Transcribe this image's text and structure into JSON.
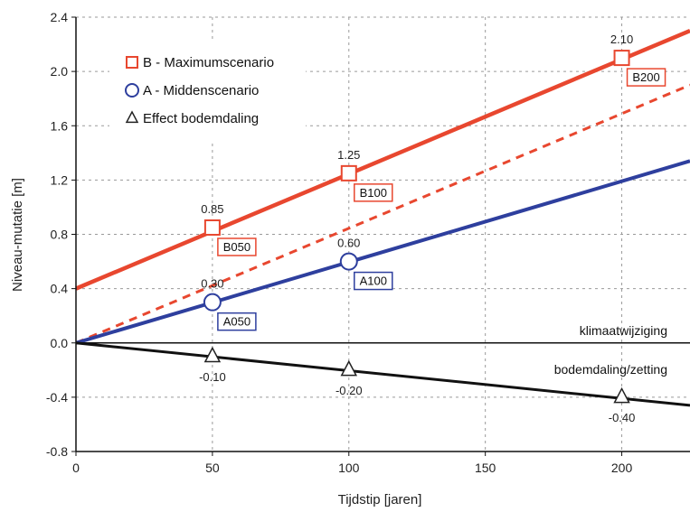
{
  "chart_data": {
    "type": "line",
    "xlabel": "Tijdstip [jaren]",
    "ylabel": "Niveau-mutatie [m]",
    "xlim": [
      0,
      225
    ],
    "ylim": [
      -0.8,
      2.4
    ],
    "xticks": [
      0,
      50,
      100,
      150,
      200
    ],
    "yticks": [
      -0.8,
      -0.4,
      0.0,
      0.4,
      0.8,
      1.2,
      1.6,
      2.0,
      2.4
    ],
    "xtick_labels": [
      "0",
      "50",
      "100",
      "150",
      "200"
    ],
    "ytick_labels": [
      "-0.8",
      "-0.4",
      "0.0",
      "0.4",
      "0.8",
      "1.2",
      "1.6",
      "2.0",
      "2.4"
    ],
    "grid": true,
    "legend_position": "top-left",
    "series": [
      {
        "name": "B - Maximumscenario",
        "legend_symbol": "□",
        "color": "#e8472f",
        "marker": "square",
        "line": {
          "x": [
            0,
            225
          ],
          "y": [
            0.4,
            2.3
          ]
        },
        "points": [
          {
            "x": 50,
            "y": 0.85,
            "label": "0.85",
            "tag": "B050"
          },
          {
            "x": 100,
            "y": 1.25,
            "label": "1.25",
            "tag": "B100"
          },
          {
            "x": 200,
            "y": 2.1,
            "label": "2.10",
            "tag": "B200"
          }
        ]
      },
      {
        "name": "A - Middenscenario",
        "legend_symbol": "○",
        "color": "#2e3f9e",
        "marker": "circle",
        "line": {
          "x": [
            0,
            225
          ],
          "y": [
            0.0,
            1.34
          ]
        },
        "points": [
          {
            "x": 50,
            "y": 0.3,
            "label": "0.30",
            "tag": "A050"
          },
          {
            "x": 100,
            "y": 0.6,
            "label": "0.60",
            "tag": "A100"
          }
        ]
      },
      {
        "name": "Effect bodemdaling",
        "legend_symbol": "Δ",
        "color": "#111111",
        "marker": "triangle",
        "line": {
          "x": [
            0,
            225
          ],
          "y": [
            0.0,
            -0.46
          ]
        },
        "points": [
          {
            "x": 50,
            "y": -0.1,
            "label": "-0.10"
          },
          {
            "x": 100,
            "y": -0.2,
            "label": "-0.20"
          },
          {
            "x": 200,
            "y": -0.4,
            "label": "-0.40"
          }
        ]
      }
    ],
    "dashed_line": {
      "color": "#e8472f",
      "x": [
        0,
        225
      ],
      "y": [
        0.0,
        1.9
      ]
    },
    "annotations": [
      "klimaatwijziging",
      "bodemdaling/zetting"
    ]
  }
}
